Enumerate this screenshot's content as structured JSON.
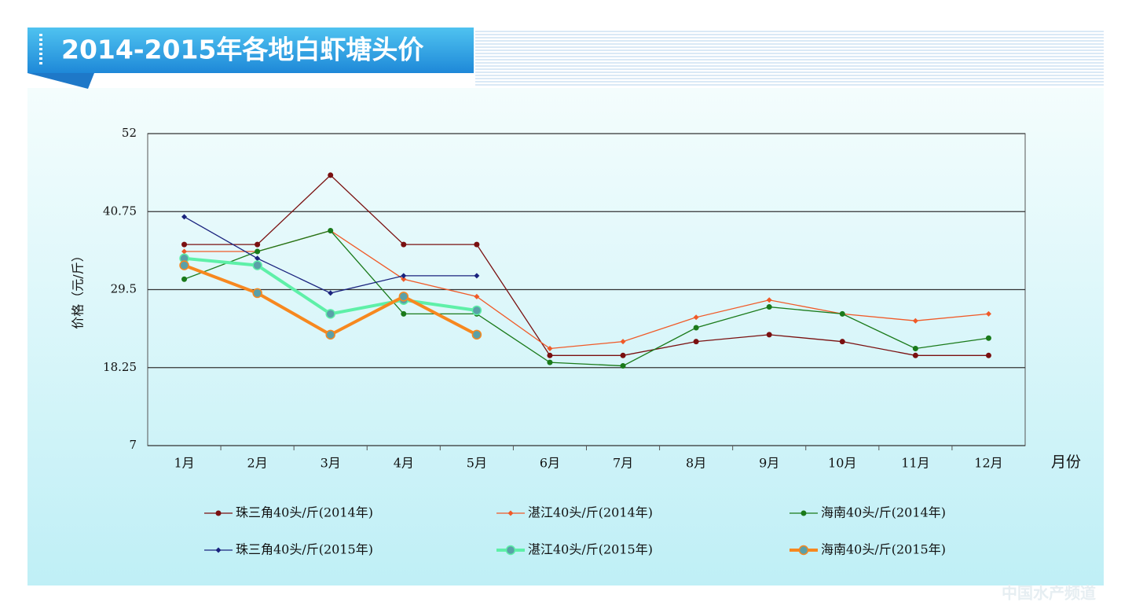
{
  "chart_data": {
    "type": "line",
    "title": "2014-2015年各地白虾塘头价",
    "y_label": "价格（元/斤）",
    "x_label": "月份",
    "watermark": "中国水产频道",
    "categories": [
      "1月",
      "2月",
      "3月",
      "4月",
      "5月",
      "6月",
      "7月",
      "8月",
      "9月",
      "10月",
      "11月",
      "12月"
    ],
    "ylim": [
      7,
      52
    ],
    "yticks": [
      7,
      18.25,
      29.5,
      40.75,
      52
    ],
    "grid": true,
    "legend": "bottom",
    "series": [
      {
        "name": "珠三角40头/斤(2014年)",
        "color": "#7a1010",
        "values": [
          36,
          36,
          46,
          36,
          36,
          20,
          20,
          22,
          23,
          22,
          20,
          20
        ]
      },
      {
        "name": "湛江40头/斤(2014年)",
        "color": "#f05a28",
        "values": [
          35,
          35,
          38,
          31,
          28.5,
          21,
          22,
          25.5,
          28,
          26,
          25,
          26
        ]
      },
      {
        "name": "海南40头/斤(2014年)",
        "color": "#1a7a1a",
        "values": [
          31,
          35,
          38,
          26,
          26,
          19,
          18.5,
          24,
          27,
          26,
          21,
          22.5
        ]
      },
      {
        "name": "珠三角40头/斤(2015年)",
        "color": "#1a237e",
        "values": [
          40,
          34,
          29,
          31.5,
          31.5,
          null,
          null,
          null,
          null,
          null,
          null,
          null
        ]
      },
      {
        "name": "湛江40头/斤(2015年)",
        "color": "#5ef0a8",
        "values": [
          34,
          33,
          26,
          28,
          26.5,
          null,
          null,
          null,
          null,
          null,
          null,
          null
        ]
      },
      {
        "name": "海南40头/斤(2015年)",
        "color": "#f7881f",
        "values": [
          33,
          29,
          23,
          28.5,
          23,
          null,
          null,
          null,
          null,
          null,
          null,
          null
        ]
      }
    ]
  }
}
